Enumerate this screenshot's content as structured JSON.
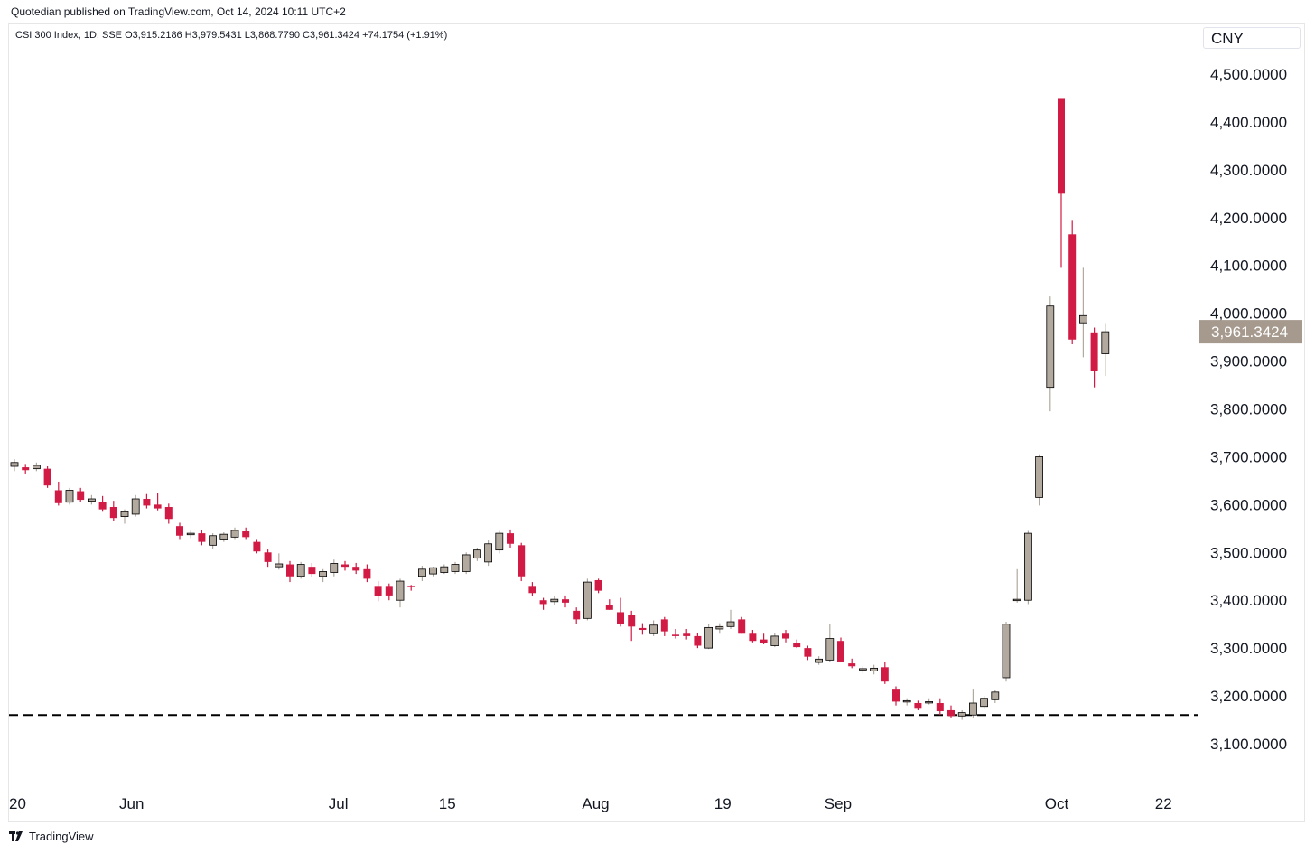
{
  "header": {
    "publish_line": "Quotedian published on TradingView.com, Oct 14, 2024 10:11 UTC+2",
    "ohlc_legend": "CSI 300 Index, 1D, SSE  O3,915.2186  H3,979.5431  L3,868.7790  C3,961.3424  +74.1754 (+1.91%)",
    "currency": "CNY"
  },
  "footer": {
    "brand": "TradingView"
  },
  "colors": {
    "up": "#b2a99f",
    "down": "#d11a44",
    "price_label_bg": "#a69a8e"
  },
  "chart_data": {
    "type": "candlestick",
    "title": "CSI 300 Index, 1D, SSE",
    "currency": "CNY",
    "ylim": [
      3040,
      4550
    ],
    "y_ticks": [
      {
        "value": 4500,
        "label": "4,500.0000"
      },
      {
        "value": 4400,
        "label": "4,400.0000"
      },
      {
        "value": 4300,
        "label": "4,300.0000"
      },
      {
        "value": 4200,
        "label": "4,200.0000"
      },
      {
        "value": 4100,
        "label": "4,100.0000"
      },
      {
        "value": 4000,
        "label": "4,000.0000"
      },
      {
        "value": 3900,
        "label": "3,900.0000"
      },
      {
        "value": 3800,
        "label": "3,800.0000"
      },
      {
        "value": 3700,
        "label": "3,700.0000"
      },
      {
        "value": 3600,
        "label": "3,600.0000"
      },
      {
        "value": 3500,
        "label": "3,500.0000"
      },
      {
        "value": 3400,
        "label": "3,400.0000"
      },
      {
        "value": 3300,
        "label": "3,300.0000"
      },
      {
        "value": 3200,
        "label": "3,200.0000"
      },
      {
        "value": 3100,
        "label": "3,100.0000"
      }
    ],
    "x_ticks": [
      {
        "index": 0,
        "label": "20"
      },
      {
        "index": 10,
        "label": "Jun"
      },
      {
        "index": 29,
        "label": "Jul"
      },
      {
        "index": 39,
        "label": "15"
      },
      {
        "index": 52,
        "label": "Aug"
      },
      {
        "index": 64,
        "label": "19"
      },
      {
        "index": 74,
        "label": "Sep"
      },
      {
        "index": 94,
        "label": "Oct"
      },
      {
        "index": 104,
        "label": "22"
      }
    ],
    "last_price": {
      "value": 3961.3424,
      "label": "3,961.3424"
    },
    "support_line": 3160,
    "candles": [
      {
        "o": 3680,
        "h": 3695,
        "l": 3670,
        "c": 3688
      },
      {
        "o": 3678,
        "h": 3685,
        "l": 3665,
        "c": 3672
      },
      {
        "o": 3675,
        "h": 3688,
        "l": 3670,
        "c": 3682
      },
      {
        "o": 3675,
        "h": 3680,
        "l": 3635,
        "c": 3640
      },
      {
        "o": 3630,
        "h": 3648,
        "l": 3598,
        "c": 3603
      },
      {
        "o": 3605,
        "h": 3635,
        "l": 3600,
        "c": 3630
      },
      {
        "o": 3628,
        "h": 3635,
        "l": 3605,
        "c": 3610
      },
      {
        "o": 3607,
        "h": 3620,
        "l": 3600,
        "c": 3612
      },
      {
        "o": 3605,
        "h": 3618,
        "l": 3585,
        "c": 3590
      },
      {
        "o": 3595,
        "h": 3608,
        "l": 3565,
        "c": 3572
      },
      {
        "o": 3575,
        "h": 3590,
        "l": 3560,
        "c": 3585
      },
      {
        "o": 3580,
        "h": 3620,
        "l": 3575,
        "c": 3612
      },
      {
        "o": 3612,
        "h": 3622,
        "l": 3592,
        "c": 3598
      },
      {
        "o": 3600,
        "h": 3625,
        "l": 3588,
        "c": 3592
      },
      {
        "o": 3595,
        "h": 3602,
        "l": 3560,
        "c": 3570
      },
      {
        "o": 3555,
        "h": 3562,
        "l": 3528,
        "c": 3535
      },
      {
        "o": 3537,
        "h": 3545,
        "l": 3530,
        "c": 3540
      },
      {
        "o": 3540,
        "h": 3546,
        "l": 3515,
        "c": 3522
      },
      {
        "o": 3515,
        "h": 3540,
        "l": 3508,
        "c": 3535
      },
      {
        "o": 3528,
        "h": 3542,
        "l": 3522,
        "c": 3538
      },
      {
        "o": 3532,
        "h": 3552,
        "l": 3528,
        "c": 3546
      },
      {
        "o": 3544,
        "h": 3552,
        "l": 3528,
        "c": 3532
      },
      {
        "o": 3522,
        "h": 3528,
        "l": 3498,
        "c": 3502
      },
      {
        "o": 3500,
        "h": 3506,
        "l": 3470,
        "c": 3480
      },
      {
        "o": 3470,
        "h": 3498,
        "l": 3464,
        "c": 3476
      },
      {
        "o": 3475,
        "h": 3482,
        "l": 3438,
        "c": 3450
      },
      {
        "o": 3450,
        "h": 3480,
        "l": 3445,
        "c": 3475
      },
      {
        "o": 3470,
        "h": 3478,
        "l": 3448,
        "c": 3455
      },
      {
        "o": 3450,
        "h": 3465,
        "l": 3438,
        "c": 3460
      },
      {
        "o": 3458,
        "h": 3485,
        "l": 3450,
        "c": 3477
      },
      {
        "o": 3475,
        "h": 3482,
        "l": 3462,
        "c": 3470
      },
      {
        "o": 3470,
        "h": 3478,
        "l": 3455,
        "c": 3462
      },
      {
        "o": 3465,
        "h": 3475,
        "l": 3438,
        "c": 3445
      },
      {
        "o": 3430,
        "h": 3440,
        "l": 3398,
        "c": 3408
      },
      {
        "o": 3430,
        "h": 3435,
        "l": 3400,
        "c": 3410
      },
      {
        "o": 3400,
        "h": 3445,
        "l": 3385,
        "c": 3440
      },
      {
        "o": 3430,
        "h": 3432,
        "l": 3420,
        "c": 3428
      },
      {
        "o": 3450,
        "h": 3472,
        "l": 3440,
        "c": 3465
      },
      {
        "o": 3455,
        "h": 3470,
        "l": 3450,
        "c": 3468
      },
      {
        "o": 3458,
        "h": 3475,
        "l": 3455,
        "c": 3470
      },
      {
        "o": 3460,
        "h": 3480,
        "l": 3455,
        "c": 3475
      },
      {
        "o": 3460,
        "h": 3500,
        "l": 3455,
        "c": 3495
      },
      {
        "o": 3488,
        "h": 3510,
        "l": 3482,
        "c": 3505
      },
      {
        "o": 3480,
        "h": 3525,
        "l": 3472,
        "c": 3518
      },
      {
        "o": 3505,
        "h": 3545,
        "l": 3498,
        "c": 3540
      },
      {
        "o": 3540,
        "h": 3548,
        "l": 3510,
        "c": 3518
      },
      {
        "o": 3515,
        "h": 3520,
        "l": 3440,
        "c": 3450
      },
      {
        "o": 3430,
        "h": 3438,
        "l": 3408,
        "c": 3415
      },
      {
        "o": 3400,
        "h": 3405,
        "l": 3380,
        "c": 3392
      },
      {
        "o": 3397,
        "h": 3408,
        "l": 3390,
        "c": 3402
      },
      {
        "o": 3402,
        "h": 3410,
        "l": 3385,
        "c": 3395
      },
      {
        "o": 3378,
        "h": 3385,
        "l": 3350,
        "c": 3360
      },
      {
        "o": 3362,
        "h": 3445,
        "l": 3358,
        "c": 3438
      },
      {
        "o": 3442,
        "h": 3445,
        "l": 3415,
        "c": 3420
      },
      {
        "o": 3390,
        "h": 3402,
        "l": 3380,
        "c": 3380
      },
      {
        "o": 3375,
        "h": 3405,
        "l": 3345,
        "c": 3350
      },
      {
        "o": 3370,
        "h": 3378,
        "l": 3315,
        "c": 3345
      },
      {
        "o": 3342,
        "h": 3352,
        "l": 3328,
        "c": 3338
      },
      {
        "o": 3330,
        "h": 3358,
        "l": 3325,
        "c": 3348
      },
      {
        "o": 3360,
        "h": 3365,
        "l": 3325,
        "c": 3335
      },
      {
        "o": 3328,
        "h": 3340,
        "l": 3320,
        "c": 3325
      },
      {
        "o": 3330,
        "h": 3340,
        "l": 3318,
        "c": 3325
      },
      {
        "o": 3325,
        "h": 3332,
        "l": 3300,
        "c": 3305
      },
      {
        "o": 3300,
        "h": 3350,
        "l": 3298,
        "c": 3343
      },
      {
        "o": 3340,
        "h": 3352,
        "l": 3330,
        "c": 3345
      },
      {
        "o": 3345,
        "h": 3380,
        "l": 3340,
        "c": 3355
      },
      {
        "o": 3360,
        "h": 3365,
        "l": 3330,
        "c": 3330
      },
      {
        "o": 3330,
        "h": 3338,
        "l": 3312,
        "c": 3315
      },
      {
        "o": 3318,
        "h": 3330,
        "l": 3308,
        "c": 3310
      },
      {
        "o": 3305,
        "h": 3332,
        "l": 3302,
        "c": 3325
      },
      {
        "o": 3330,
        "h": 3338,
        "l": 3312,
        "c": 3320
      },
      {
        "o": 3310,
        "h": 3318,
        "l": 3300,
        "c": 3302
      },
      {
        "o": 3300,
        "h": 3305,
        "l": 3275,
        "c": 3282
      },
      {
        "o": 3270,
        "h": 3283,
        "l": 3265,
        "c": 3277
      },
      {
        "o": 3275,
        "h": 3350,
        "l": 3270,
        "c": 3320
      },
      {
        "o": 3315,
        "h": 3322,
        "l": 3270,
        "c": 3272
      },
      {
        "o": 3268,
        "h": 3278,
        "l": 3258,
        "c": 3262
      },
      {
        "o": 3255,
        "h": 3262,
        "l": 3248,
        "c": 3257
      },
      {
        "o": 3252,
        "h": 3265,
        "l": 3245,
        "c": 3258
      },
      {
        "o": 3260,
        "h": 3272,
        "l": 3225,
        "c": 3230
      },
      {
        "o": 3215,
        "h": 3220,
        "l": 3180,
        "c": 3188
      },
      {
        "o": 3188,
        "h": 3195,
        "l": 3180,
        "c": 3190
      },
      {
        "o": 3185,
        "h": 3190,
        "l": 3170,
        "c": 3175
      },
      {
        "o": 3187,
        "h": 3195,
        "l": 3182,
        "c": 3188
      },
      {
        "o": 3185,
        "h": 3195,
        "l": 3160,
        "c": 3168
      },
      {
        "o": 3170,
        "h": 3180,
        "l": 3155,
        "c": 3158
      },
      {
        "o": 3158,
        "h": 3170,
        "l": 3150,
        "c": 3165
      },
      {
        "o": 3160,
        "h": 3215,
        "l": 3155,
        "c": 3185
      },
      {
        "o": 3178,
        "h": 3200,
        "l": 3172,
        "c": 3195
      },
      {
        "o": 3192,
        "h": 3212,
        "l": 3185,
        "c": 3208
      },
      {
        "o": 3238,
        "h": 3355,
        "l": 3230,
        "c": 3350
      },
      {
        "o": 3400,
        "h": 3465,
        "l": 3395,
        "c": 3402
      },
      {
        "o": 3400,
        "h": 3545,
        "l": 3392,
        "c": 3540
      },
      {
        "o": 3615,
        "h": 3705,
        "l": 3598,
        "c": 3700
      },
      {
        "o": 3845,
        "h": 4035,
        "l": 3795,
        "c": 4015
      },
      {
        "o": 4450,
        "h": 4450,
        "l": 4095,
        "c": 4250
      },
      {
        "o": 4165,
        "h": 4195,
        "l": 3935,
        "c": 3945
      },
      {
        "o": 3980,
        "h": 4095,
        "l": 3908,
        "c": 3995
      },
      {
        "o": 3960,
        "h": 3970,
        "l": 3845,
        "c": 3880
      },
      {
        "o": 3915.2186,
        "h": 3979.5431,
        "l": 3868.779,
        "c": 3961.3424
      }
    ]
  }
}
